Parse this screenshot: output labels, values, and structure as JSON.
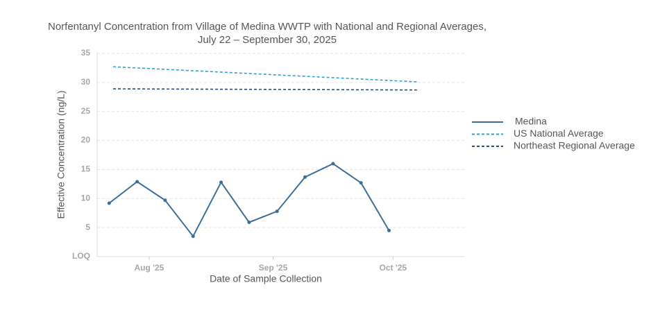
{
  "chart_data": {
    "type": "line",
    "title": "Norfentanyl Concentration from Village of Medina WWTP with National and Regional Averages,",
    "subtitle": "July 22 – September 30, 2025",
    "x_label": "Date of Sample Collection",
    "y_label": "Effective Concentration (ng/L)",
    "xlim": [
      "2025-07-19",
      "2025-10-19"
    ],
    "xticks": [
      {
        "value": "2025-08-01",
        "label": "Aug '25"
      },
      {
        "value": "2025-09-01",
        "label": "Sep '25"
      },
      {
        "value": "2025-10-01",
        "label": "Oct '25"
      }
    ],
    "ylim": [
      0,
      35
    ],
    "yticks": [
      {
        "value": 0,
        "label": "LOQ"
      },
      5,
      10,
      15,
      20,
      25,
      30,
      35
    ],
    "grid": true,
    "legend": "right",
    "series": [
      {
        "name": "Medina",
        "color": "#3d6e99",
        "dashed": false,
        "markers": true,
        "x": [
          "2025-07-22",
          "2025-07-29",
          "2025-08-05",
          "2025-08-12",
          "2025-08-19",
          "2025-08-26",
          "2025-09-02",
          "2025-09-09",
          "2025-09-16",
          "2025-09-23",
          "2025-09-30"
        ],
        "values": [
          9.2,
          12.9,
          9.7,
          3.5,
          12.8,
          5.9,
          7.8,
          13.7,
          16.0,
          12.7,
          4.5
        ]
      },
      {
        "name": "US National Average",
        "color": "#2a9fd8",
        "dashed": true,
        "markers": false,
        "x": [
          "2025-07-23",
          "2025-10-07"
        ],
        "values": [
          32.7,
          30.1
        ]
      },
      {
        "name": "Northeast Regional Average",
        "color": "#1f4e79",
        "dashed": true,
        "markers": false,
        "x": [
          "2025-07-23",
          "2025-10-07"
        ],
        "values": [
          28.9,
          28.7
        ]
      }
    ]
  }
}
